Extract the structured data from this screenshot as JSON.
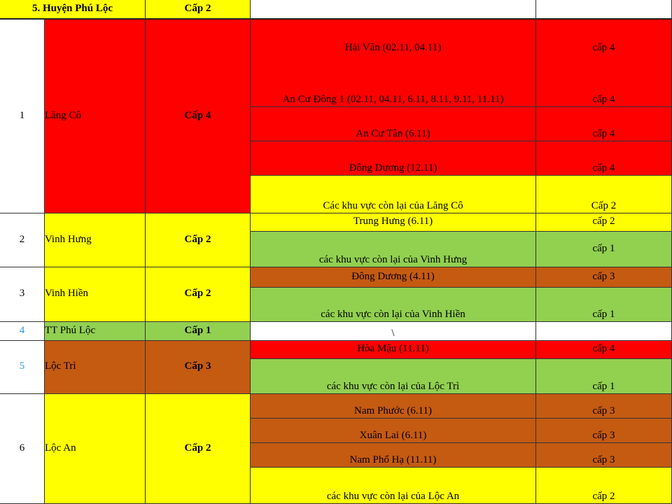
{
  "colors": {
    "red": "#ff0000",
    "yellow": "#ffff00",
    "green": "#92d050",
    "brown": "#c55a11",
    "index_blue": "#2e9bd6"
  },
  "header": {
    "district": "5. Huyện Phú Lộc",
    "level": "Cấp 2",
    "area": "",
    "area_level": ""
  },
  "rows": [
    {
      "index": "1",
      "commune": "Lăng Cô",
      "level": "Cấp 4",
      "subareas": [
        {
          "name": "Hải Vân (02.11, 04.11)",
          "level": "cấp 4"
        },
        {
          "name": "An Cư Đông 1 (02.11, 04.11, 6.11, 8.11, 9.11, 11.11)",
          "level": "cấp 4"
        },
        {
          "name": "An Cư Tân (6.11)",
          "level": "cấp 4"
        },
        {
          "name": "Đông Dương (12.11)",
          "level": "cấp 4"
        },
        {
          "name": "Các khu vực còn lại của Lăng Cô",
          "level": "Cấp 2"
        }
      ]
    },
    {
      "index": "2",
      "commune": "Vinh Hưng",
      "level": "Cấp 2",
      "subareas": [
        {
          "name": "Trung Hưng (6.11)",
          "level": "cấp 2"
        },
        {
          "name": "các khu vực còn lại của Vinh Hưng",
          "level": "cấp 1"
        }
      ]
    },
    {
      "index": "3",
      "commune": "Vinh Hiền",
      "level": "Cấp 2",
      "subareas": [
        {
          "name": "Đông Dương (4.11)",
          "level": "cấp 3"
        },
        {
          "name": "các khu vực còn lại của Vinh Hiền",
          "level": "cấp 1"
        }
      ]
    },
    {
      "index": "4",
      "commune": "TT Phú Lộc",
      "level": "Cấp 1",
      "subareas": [
        {
          "name": "\\",
          "level": ""
        }
      ]
    },
    {
      "index": "5",
      "commune": "Lộc Trì",
      "level": "Cấp 3",
      "subareas": [
        {
          "name": "Hòa Mậu (11.11)",
          "level": "cấp 4"
        },
        {
          "name": "các khu vực còn lại của Lộc Trì",
          "level": "cấp 1"
        }
      ]
    },
    {
      "index": "6",
      "commune": "Lộc An",
      "level": "Cấp 2",
      "subareas": [
        {
          "name": "Nam Phước (6.11)",
          "level": "cấp 3"
        },
        {
          "name": "Xuân Lai (6.11)",
          "level": "cấp 3"
        },
        {
          "name": "Nam Phổ Hạ (11.11)",
          "level": "cấp 3"
        },
        {
          "name": "các khu vực còn lại của Lộc An",
          "level": "cấp 2"
        }
      ]
    }
  ]
}
